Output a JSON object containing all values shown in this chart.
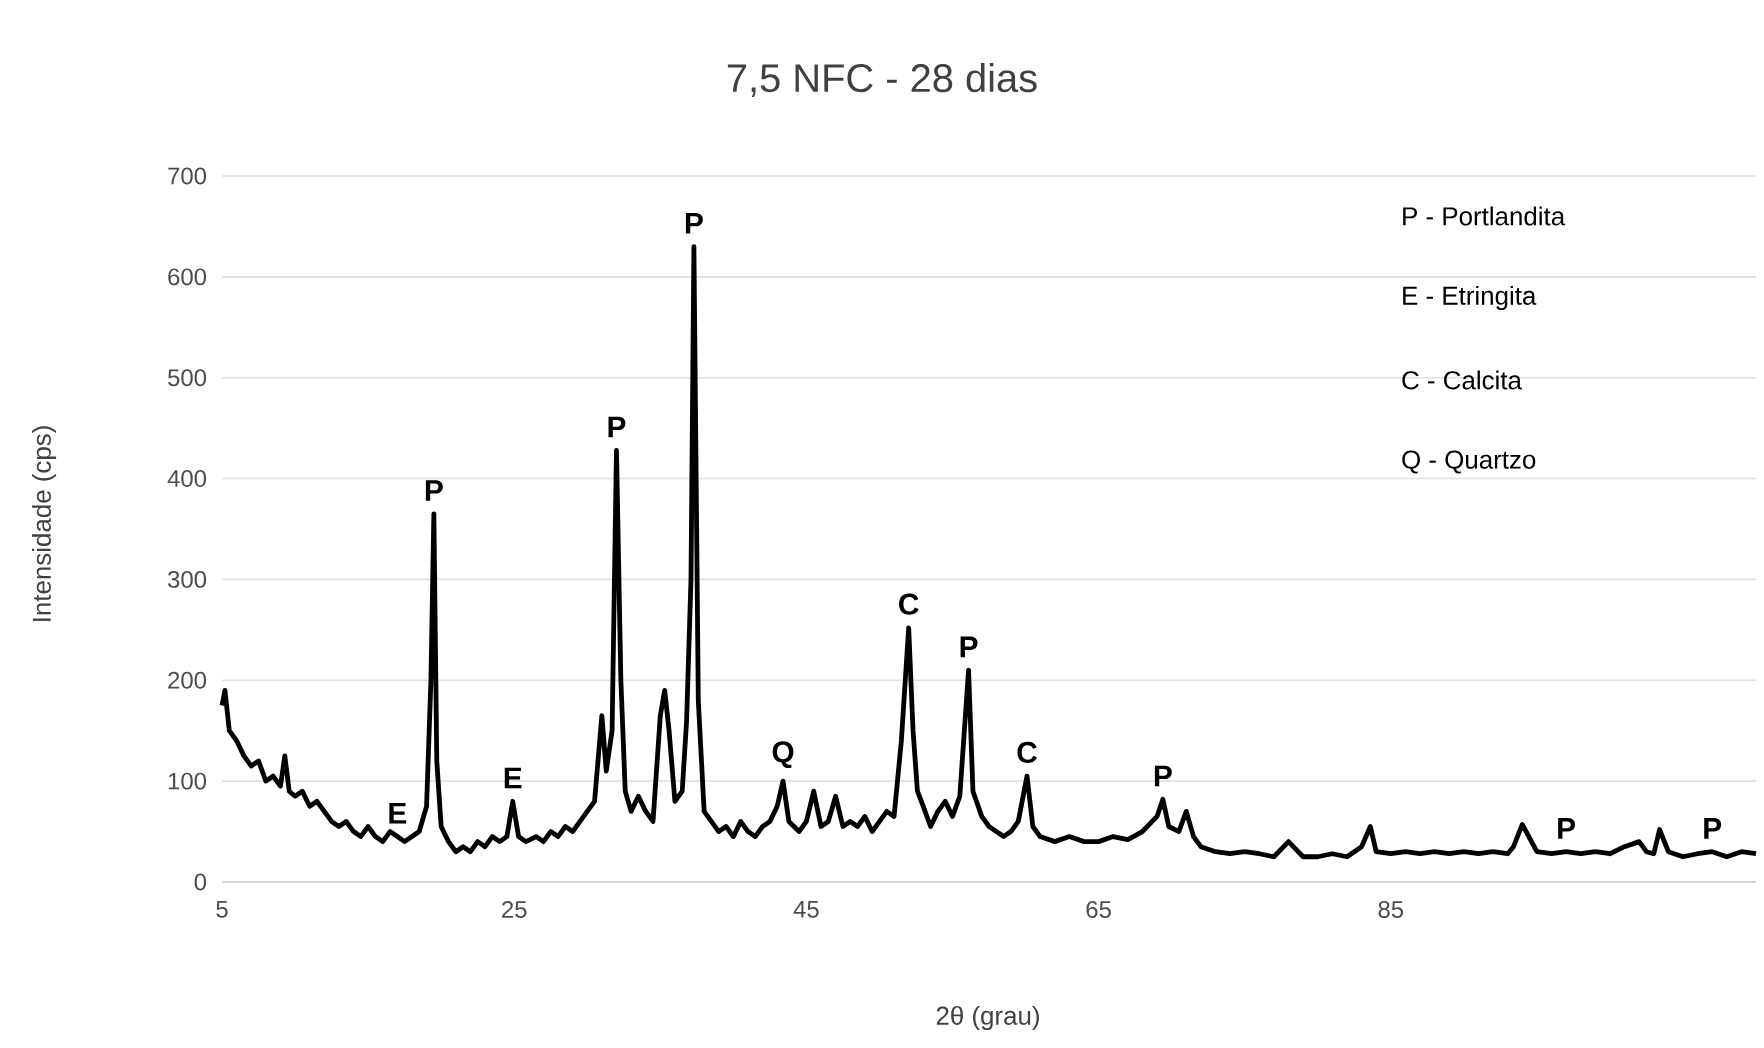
{
  "chart_data": {
    "type": "line",
    "title": "7,5 NFC - 28 dias",
    "xlabel": "2θ (grau)",
    "ylabel": "Intensidade (cps)",
    "xlim": [
      5,
      110
    ],
    "ylim": [
      0,
      700
    ],
    "xticks": [
      5,
      25,
      45,
      65,
      85
    ],
    "yticks": [
      0,
      100,
      200,
      300,
      400,
      500,
      600,
      700
    ],
    "grid": "y",
    "marker": "none",
    "line_style": "solid",
    "series": [
      {
        "color": "#000000",
        "x": [
          5,
          5.2,
          5.5,
          6,
          6.5,
          7,
          7.5,
          8,
          8.5,
          9,
          9.3,
          9.6,
          10,
          10.5,
          11,
          11.5,
          12,
          12.5,
          13,
          13.5,
          14,
          14.5,
          15,
          15.5,
          16,
          16.5,
          17,
          17.5,
          18,
          18.5,
          19,
          19.3,
          19.5,
          19.7,
          20,
          20.5,
          21,
          21.5,
          22,
          22.5,
          23,
          23.5,
          24,
          24.5,
          24.9,
          25.3,
          25.8,
          26.5,
          27,
          27.5,
          28,
          28.5,
          29,
          29.5,
          30,
          30.5,
          31,
          31.3,
          31.7,
          32,
          32.3,
          32.6,
          33,
          33.5,
          34,
          34.5,
          35,
          35.3,
          35.6,
          36,
          36.5,
          36.8,
          37.1,
          37.3,
          37.6,
          38,
          38.5,
          39,
          39.5,
          40,
          40.5,
          41,
          41.5,
          42,
          42.5,
          43,
          43.4,
          43.8,
          44.5,
          45,
          45.5,
          46,
          46.5,
          47,
          47.5,
          48,
          48.5,
          49,
          49.5,
          50,
          50.5,
          51,
          51.5,
          52,
          52.3,
          52.6,
          53,
          53.5,
          54,
          54.5,
          55,
          55.5,
          56.1,
          56.4,
          57,
          57.5,
          58,
          58.5,
          59,
          59.5,
          60.1,
          60.5,
          61,
          62,
          63,
          64,
          65,
          66,
          67,
          68,
          69,
          69.4,
          69.8,
          70.5,
          71,
          71.5,
          72,
          73,
          74,
          75,
          76,
          77,
          78,
          79,
          80,
          81,
          82,
          83,
          83.6,
          84,
          85,
          86,
          87,
          88,
          89,
          90,
          91,
          92,
          93,
          93.4,
          94,
          95,
          96,
          97,
          98,
          99,
          100,
          101,
          102,
          102.5,
          103,
          103.4,
          104,
          105,
          106,
          107,
          108,
          109,
          110
        ],
        "values": [
          175,
          190,
          150,
          140,
          125,
          115,
          120,
          100,
          105,
          95,
          125,
          90,
          85,
          90,
          75,
          80,
          70,
          60,
          55,
          60,
          50,
          45,
          55,
          45,
          40,
          50,
          45,
          40,
          45,
          50,
          75,
          200,
          365,
          120,
          55,
          40,
          30,
          35,
          30,
          40,
          35,
          45,
          40,
          45,
          80,
          45,
          40,
          45,
          40,
          50,
          45,
          55,
          50,
          60,
          70,
          80,
          165,
          110,
          150,
          428,
          200,
          90,
          70,
          85,
          70,
          60,
          165,
          190,
          150,
          80,
          90,
          160,
          300,
          630,
          180,
          70,
          60,
          50,
          55,
          45,
          60,
          50,
          45,
          55,
          60,
          75,
          100,
          60,
          50,
          60,
          90,
          55,
          60,
          85,
          55,
          60,
          55,
          65,
          50,
          60,
          70,
          65,
          140,
          252,
          150,
          90,
          75,
          55,
          70,
          80,
          65,
          85,
          210,
          90,
          65,
          55,
          50,
          45,
          50,
          60,
          105,
          55,
          45,
          40,
          45,
          40,
          40,
          45,
          42,
          50,
          65,
          82,
          55,
          50,
          70,
          45,
          35,
          30,
          28,
          30,
          28,
          25,
          40,
          25,
          25,
          28,
          25,
          35,
          55,
          30,
          28,
          30,
          28,
          30,
          28,
          30,
          28,
          30,
          28,
          35,
          57,
          30,
          28,
          30,
          28,
          30,
          28,
          35,
          40,
          30,
          28,
          52,
          30,
          25,
          28,
          30,
          25,
          30,
          28
        ]
      }
    ],
    "annotations": [
      {
        "text": "P",
        "x": 19.5,
        "y": 365
      },
      {
        "text": "E",
        "x": 17,
        "y": 45
      },
      {
        "text": "E",
        "x": 24.9,
        "y": 80
      },
      {
        "text": "P",
        "x": 32,
        "y": 428
      },
      {
        "text": "P",
        "x": 37.3,
        "y": 630
      },
      {
        "text": "Q",
        "x": 43.4,
        "y": 100
      },
      {
        "text": "C",
        "x": 52,
        "y": 252
      },
      {
        "text": "P",
        "x": 56.1,
        "y": 210
      },
      {
        "text": "C",
        "x": 60.1,
        "y": 105
      },
      {
        "text": "P",
        "x": 69.4,
        "y": 82
      },
      {
        "text": "P",
        "x": 97,
        "y": 30
      },
      {
        "text": "P",
        "x": 107,
        "y": 30
      },
      "P - Portlandita",
      "E - Etringita",
      "C - Calcita",
      "Q - Quartzo"
    ]
  }
}
